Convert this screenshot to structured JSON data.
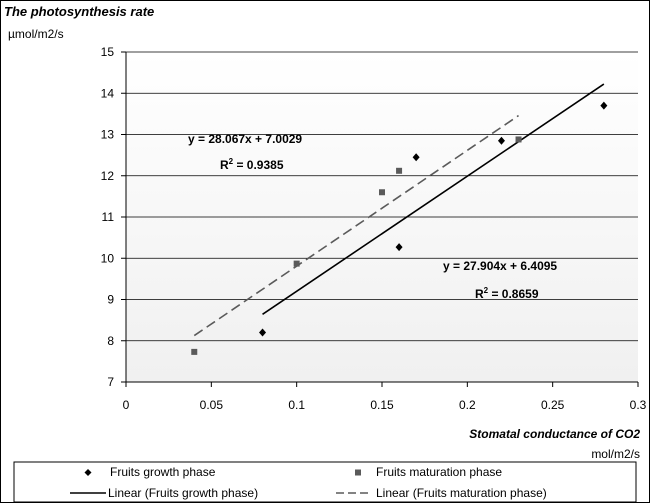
{
  "chart_data": {
    "type": "scatter",
    "title": "The photosynthesis rate",
    "ylabel": "µmol/m2/s",
    "xlabel": "Stomatal conductance of CO2",
    "xunit": "mol/m2/s",
    "xlim": [
      0,
      0.3
    ],
    "ylim": [
      7,
      15
    ],
    "xticks": [
      "0",
      "0.05",
      "0.1",
      "0.15",
      "0.2",
      "0.25",
      "0.3"
    ],
    "yticks": [
      "7",
      "8",
      "9",
      "10",
      "11",
      "12",
      "13",
      "14",
      "15"
    ],
    "grid": "horizontal",
    "legend_position": "bottom",
    "series": [
      {
        "name": "Fruits growth phase",
        "marker": "diamond",
        "color": "#000000",
        "points": [
          [
            0.08,
            8.2
          ],
          [
            0.16,
            10.27
          ],
          [
            0.17,
            12.45
          ],
          [
            0.22,
            12.85
          ],
          [
            0.28,
            13.7
          ]
        ]
      },
      {
        "name": "Fruits maturation phase",
        "marker": "square",
        "color": "#5a5a5a",
        "points": [
          [
            0.04,
            7.73
          ],
          [
            0.1,
            9.87
          ],
          [
            0.15,
            11.6
          ],
          [
            0.16,
            12.12
          ],
          [
            0.23,
            12.88
          ]
        ]
      }
    ],
    "trendlines": [
      {
        "name": "Linear (Fruits growth phase)",
        "style": "solid",
        "color": "#000000",
        "slope": 27.904,
        "intercept": 6.4095,
        "x_range": [
          0.08,
          0.28
        ],
        "equation": "y = 27.904x + 6.4095",
        "r2_label": "R",
        "r2_value": " = 0.8659"
      },
      {
        "name": "Linear (Fruits maturation phase)",
        "style": "dashed",
        "color": "#5a5a5a",
        "slope": 28.067,
        "intercept": 7.0029,
        "x_range": [
          0.04,
          0.23
        ],
        "equation": "y = 28.067x + 7.0029",
        "r2_label": "R",
        "r2_value": " = 0.9385"
      }
    ]
  }
}
